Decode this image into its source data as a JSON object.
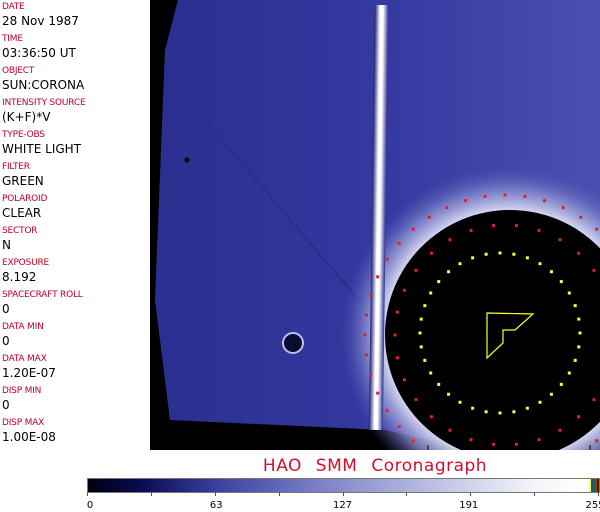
{
  "fields": [
    {
      "label": "DATE",
      "value": "28 Nov 1987"
    },
    {
      "label": "TIME",
      "value": "03:36:50 UT"
    },
    {
      "label": "OBJECT",
      "value": "SUN:CORONA"
    },
    {
      "label": "INTENSITY SOURCE",
      "value": "(K+F)*V"
    },
    {
      "label": "TYPE-OBS",
      "value": "WHITE LIGHT"
    },
    {
      "label": "FILTER",
      "value": "GREEN"
    },
    {
      "label": "POLAROID",
      "value": "CLEAR"
    },
    {
      "label": "SECTOR",
      "value": "N"
    },
    {
      "label": "EXPOSURE",
      "value": "8.192"
    },
    {
      "label": "SPACECRAFT ROLL",
      "value": "0"
    },
    {
      "label": "DATA MIN",
      "value": "0"
    },
    {
      "label": "DATA MAX",
      "value": "1.20E-07"
    },
    {
      "label": "DISP MIN",
      "value": "0"
    },
    {
      "label": "DISP MAX",
      "value": "1.00E-08"
    }
  ],
  "title": "HAO SMM Coronagraph",
  "colorbar": {
    "ticks": [
      "0",
      "63",
      "127",
      "191",
      "255"
    ],
    "colors": {
      "low": "#000010",
      "mid": "#7b80c8",
      "high": "#ffffff"
    }
  },
  "colors": {
    "label": "#c00020",
    "title": "#d0102a"
  }
}
